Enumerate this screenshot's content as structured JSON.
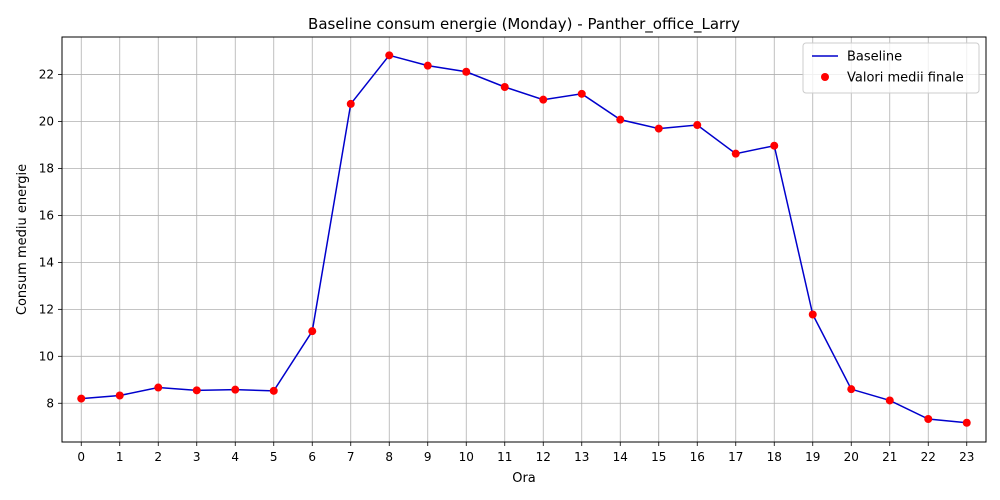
{
  "chart_data": {
    "type": "line",
    "title": "Baseline consum energie (Monday) - Panther_office_Larry",
    "xlabel": "Ora",
    "ylabel": "Consum mediu energie",
    "x": [
      0,
      1,
      2,
      3,
      4,
      5,
      6,
      7,
      8,
      9,
      10,
      11,
      12,
      13,
      14,
      15,
      16,
      17,
      18,
      19,
      20,
      21,
      22,
      23
    ],
    "xlim": [
      -0.5,
      23.5
    ],
    "ylim": [
      6.35,
      23.6
    ],
    "yticks": [
      8,
      10,
      12,
      14,
      16,
      18,
      20,
      22
    ],
    "grid": true,
    "legend_position": "top-right",
    "series": [
      {
        "name": "Baseline",
        "kind": "line",
        "color": "#0000cc",
        "values": [
          8.2,
          8.33,
          8.67,
          8.55,
          8.58,
          8.53,
          11.07,
          20.75,
          22.82,
          22.38,
          22.12,
          21.47,
          20.93,
          21.18,
          20.08,
          19.7,
          19.85,
          18.63,
          18.97,
          11.78,
          8.6,
          8.12,
          7.33,
          7.17
        ]
      },
      {
        "name": "Valori medii finale",
        "kind": "scatter",
        "color": "#ff0000",
        "values": [
          8.2,
          8.33,
          8.67,
          8.55,
          8.58,
          8.53,
          11.07,
          20.75,
          22.82,
          22.38,
          22.12,
          21.47,
          20.93,
          21.18,
          20.08,
          19.7,
          19.85,
          18.63,
          18.97,
          11.78,
          8.6,
          8.12,
          7.33,
          7.17
        ]
      }
    ]
  }
}
